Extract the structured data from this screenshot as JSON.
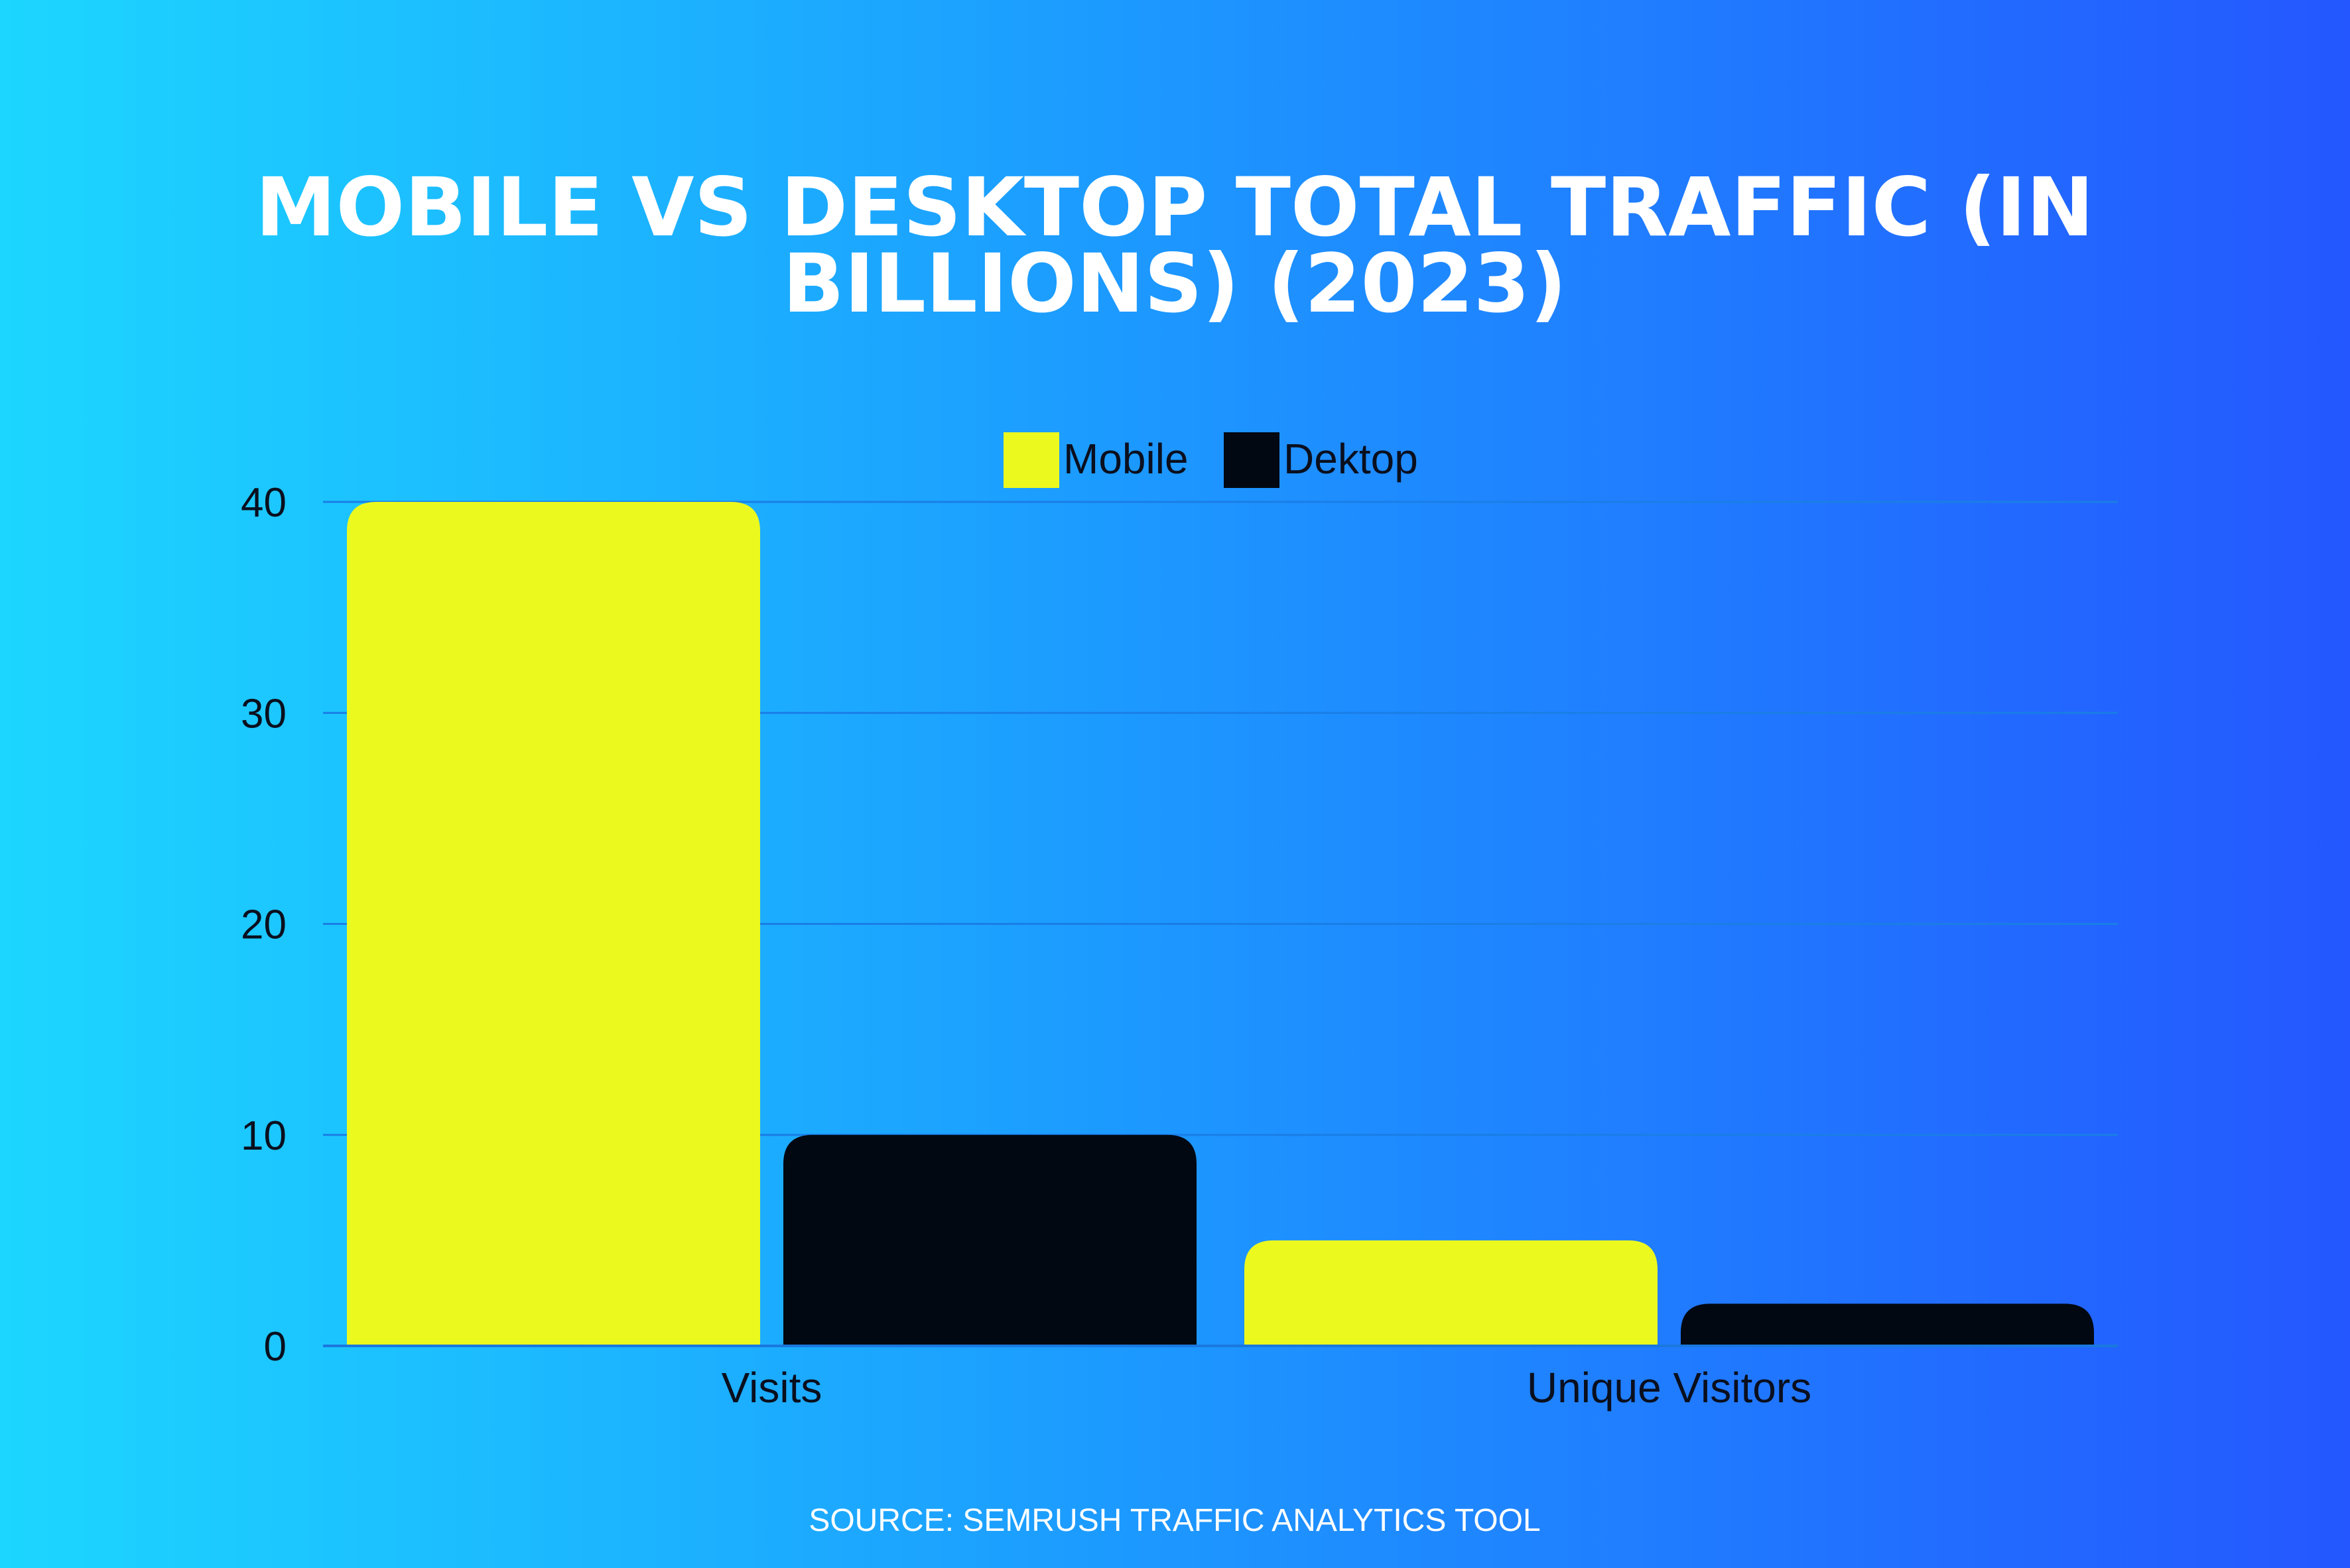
{
  "colors": {
    "mobile": "#ebf91e",
    "desktop": "#020812"
  },
  "chart_data": {
    "type": "bar",
    "title_lines": [
      "MOBILE VS DESKTOP TOTAL TRAFFIC (IN",
      "BILLIONS) (2023)"
    ],
    "categories": [
      "Visits",
      "Unique Visitors"
    ],
    "series": [
      {
        "name": "Mobile",
        "values": [
          40,
          5
        ]
      },
      {
        "name": "Dektop",
        "values": [
          10,
          2
        ]
      }
    ],
    "yticks": [
      0,
      10,
      20,
      30,
      40
    ],
    "ylim": [
      0,
      40
    ],
    "grid": true,
    "legend_position": "top-center",
    "source": "SOURCE: SEMRUSH TRAFFIC ANALYTICS TOOL"
  }
}
